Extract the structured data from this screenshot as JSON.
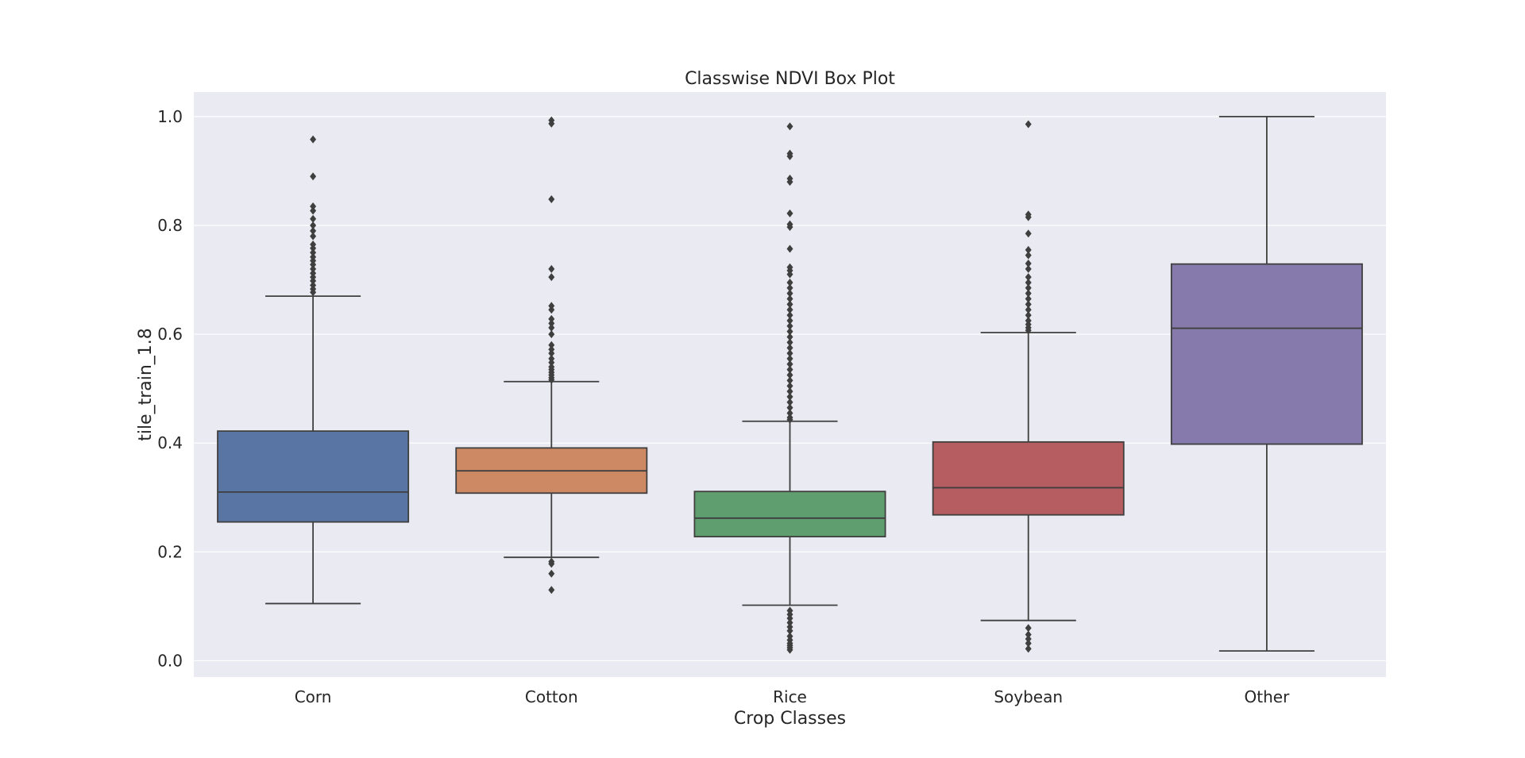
{
  "chart_data": {
    "type": "box",
    "title": "Classwise NDVI Box Plot",
    "xlabel": "Crop Classes",
    "ylabel": "tile_train_1.8",
    "ylim": [
      -0.03,
      1.045
    ],
    "yticks": [
      0.0,
      0.2,
      0.4,
      0.6,
      0.8,
      1.0
    ],
    "ytick_labels": [
      "0.0",
      "0.2",
      "0.4",
      "0.6",
      "0.8",
      "1.0"
    ],
    "grid": true,
    "categories": [
      "Corn",
      "Cotton",
      "Rice",
      "Soybean",
      "Other"
    ],
    "colors": {
      "background": "#eaeaf2",
      "grid": "#ffffff",
      "edge": "#3f3f3f",
      "boxes": [
        "#5975a4",
        "#cc8963",
        "#5f9e6e",
        "#b55d60",
        "#857aab"
      ]
    },
    "boxes": [
      {
        "name": "Corn",
        "whisker_low": 0.105,
        "q1": 0.255,
        "median": 0.31,
        "q3": 0.422,
        "whisker_high": 0.67,
        "outliers": [
          0.958,
          0.89,
          0.835,
          0.827,
          0.812,
          0.8,
          0.79,
          0.78,
          0.765,
          0.758,
          0.75,
          0.742,
          0.735,
          0.728,
          0.72,
          0.712,
          0.705,
          0.698,
          0.69,
          0.683,
          0.677
        ]
      },
      {
        "name": "Cotton",
        "whisker_low": 0.19,
        "q1": 0.308,
        "median": 0.349,
        "q3": 0.391,
        "whisker_high": 0.513,
        "outliers": [
          0.993,
          0.987,
          0.848,
          0.72,
          0.705,
          0.652,
          0.645,
          0.628,
          0.62,
          0.612,
          0.6,
          0.58,
          0.572,
          0.565,
          0.555,
          0.548,
          0.54,
          0.535,
          0.53,
          0.525,
          0.52,
          0.516,
          0.182,
          0.178,
          0.16,
          0.13
        ]
      },
      {
        "name": "Rice",
        "whisker_low": 0.102,
        "q1": 0.228,
        "median": 0.262,
        "q3": 0.311,
        "whisker_high": 0.44,
        "outliers": [
          0.982,
          0.932,
          0.927,
          0.886,
          0.88,
          0.822,
          0.802,
          0.797,
          0.757,
          0.723,
          0.717,
          0.71,
          0.695,
          0.685,
          0.675,
          0.665,
          0.655,
          0.645,
          0.635,
          0.625,
          0.615,
          0.605,
          0.595,
          0.585,
          0.575,
          0.565,
          0.555,
          0.545,
          0.535,
          0.525,
          0.515,
          0.505,
          0.495,
          0.485,
          0.475,
          0.465,
          0.455,
          0.447,
          0.443,
          0.092,
          0.085,
          0.078,
          0.07,
          0.062,
          0.055,
          0.045,
          0.038,
          0.032,
          0.028,
          0.024,
          0.02
        ]
      },
      {
        "name": "Soybean",
        "whisker_low": 0.074,
        "q1": 0.268,
        "median": 0.318,
        "q3": 0.402,
        "whisker_high": 0.603,
        "outliers": [
          0.986,
          0.82,
          0.815,
          0.785,
          0.755,
          0.745,
          0.73,
          0.72,
          0.705,
          0.695,
          0.685,
          0.675,
          0.665,
          0.655,
          0.645,
          0.635,
          0.625,
          0.618,
          0.612,
          0.607,
          0.06,
          0.048,
          0.04,
          0.032,
          0.022
        ]
      },
      {
        "name": "Other",
        "whisker_low": 0.018,
        "q1": 0.398,
        "median": 0.611,
        "q3": 0.729,
        "whisker_high": 1.0,
        "outliers": []
      }
    ]
  }
}
